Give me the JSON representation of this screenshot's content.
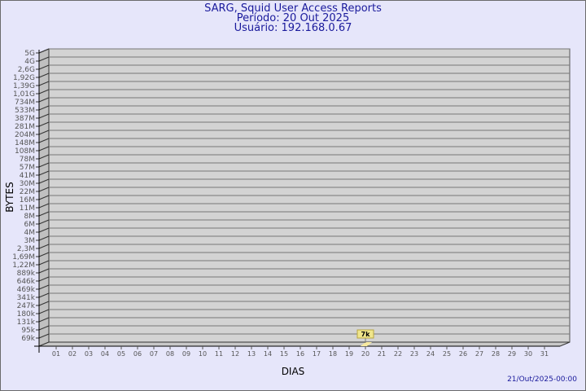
{
  "header": {
    "title": "SARG, Squid User Access Reports",
    "period": "Período: 20 Out 2025",
    "user": "Usuário: 192.168.0.67"
  },
  "footer": {
    "timestamp": "21/Out/2025-00:00"
  },
  "colors": {
    "background": "#e6e6fa",
    "wall": "#d3d3d3",
    "text": "#1a1a9c",
    "bar": "#f0e68c"
  },
  "chart_data": {
    "type": "bar",
    "title": "SARG, Squid User Access Reports",
    "xlabel": "DIAS",
    "ylabel": "BYTES",
    "y_scale": "log",
    "y_ticks": [
      "5G",
      "4G",
      "2,6G",
      "1,92G",
      "1,39G",
      "1,01G",
      "734M",
      "533M",
      "387M",
      "281M",
      "204M",
      "148M",
      "108M",
      "78M",
      "57M",
      "41M",
      "30M",
      "22M",
      "16M",
      "11M",
      "8M",
      "6M",
      "4M",
      "3M",
      "2,3M",
      "1,69M",
      "1,22M",
      "889k",
      "646k",
      "469k",
      "341k",
      "247k",
      "180k",
      "131k",
      "95k",
      "69k"
    ],
    "categories": [
      "01",
      "02",
      "03",
      "04",
      "05",
      "06",
      "07",
      "08",
      "09",
      "10",
      "11",
      "12",
      "13",
      "14",
      "15",
      "16",
      "17",
      "18",
      "19",
      "20",
      "21",
      "22",
      "23",
      "24",
      "25",
      "26",
      "27",
      "28",
      "29",
      "30",
      "31"
    ],
    "bars": [
      {
        "category": "20",
        "value": 7000,
        "label": "7k"
      }
    ],
    "grid": true
  }
}
